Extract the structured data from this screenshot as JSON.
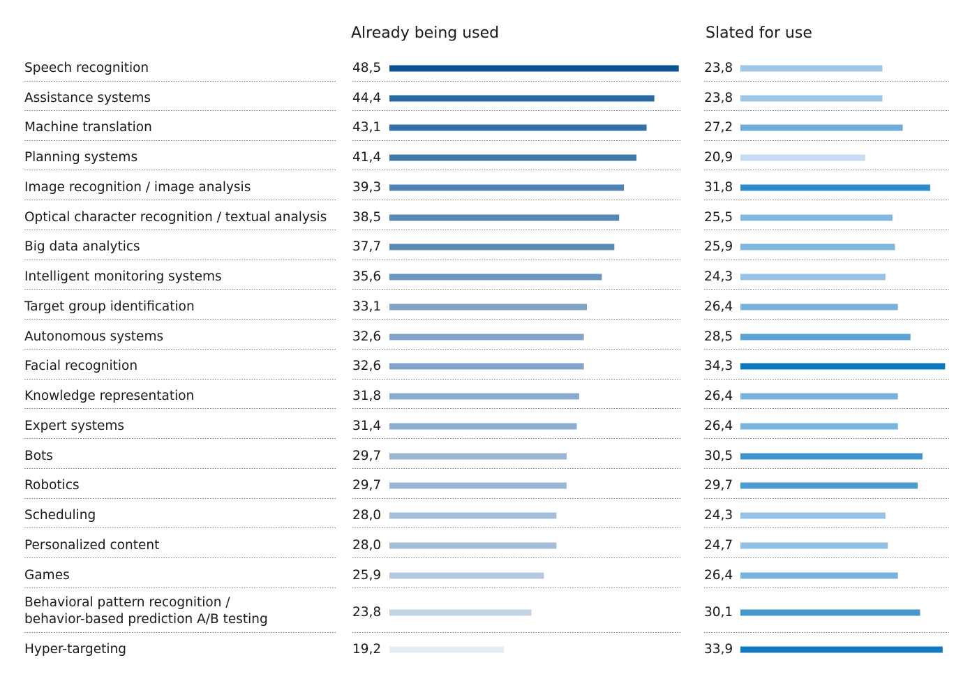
{
  "chart_data": {
    "type": "bar",
    "categories": [
      [
        "Speech recognition"
      ],
      [
        "Assistance systems"
      ],
      [
        "Machine translation"
      ],
      [
        "Planning systems"
      ],
      [
        "Image recognition / image analysis"
      ],
      [
        "Optical character recognition / textual analysis"
      ],
      [
        "Big data analytics"
      ],
      [
        "Intelligent monitoring systems"
      ],
      [
        "Target group identification"
      ],
      [
        "Autonomous systems"
      ],
      [
        "Facial recognition"
      ],
      [
        "Knowledge representation"
      ],
      [
        "Expert systems"
      ],
      [
        "Bots"
      ],
      [
        "Robotics"
      ],
      [
        "Scheduling"
      ],
      [
        "Personalized content"
      ],
      [
        "Games"
      ],
      [
        "Behavioral pattern recognition /",
        "behavior-based prediction A/B testing"
      ],
      [
        "Hyper-targeting"
      ]
    ],
    "series": [
      {
        "name": "Already being used",
        "values": [
          "48,5",
          "44,4",
          "43,1",
          "41,4",
          "39,3",
          "38,5",
          "37,7",
          "35,6",
          "33,1",
          "32,6",
          "32,6",
          "31,8",
          "31,4",
          "29,7",
          "29,7",
          "28,0",
          "28,0",
          "25,9",
          "23,8",
          "19,2"
        ],
        "color_dark": "#0b5394",
        "color_light": "#e6ebf5"
      },
      {
        "name": "Slated for use",
        "values": [
          "23,8",
          "23,8",
          "27,2",
          "20,9",
          "31,8",
          "25,5",
          "25,9",
          "24,3",
          "26,4",
          "28,5",
          "34,3",
          "26,4",
          "26,4",
          "30,5",
          "29,7",
          "24,3",
          "24,7",
          "26,4",
          "30,1",
          "33,9"
        ],
        "color_dark": "#0a78be",
        "color_light": "#c6dcf2"
      }
    ],
    "grid": false,
    "legend": "column headers"
  }
}
